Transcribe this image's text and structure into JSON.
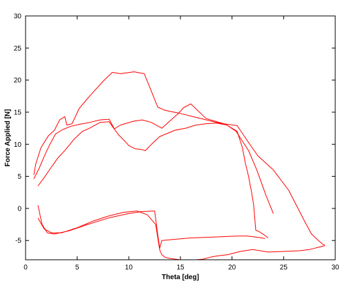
{
  "chart_data": {
    "type": "line",
    "title": "",
    "xlabel": "Theta [deg]",
    "ylabel": "Force Applied [N]",
    "xlim": [
      0,
      30
    ],
    "ylim": [
      -8,
      30
    ],
    "xticks": [
      0,
      5,
      10,
      15,
      20,
      25,
      30
    ],
    "yticks": [
      -5,
      0,
      5,
      10,
      15,
      20,
      25,
      30
    ],
    "grid": false,
    "legend": "none",
    "line_color": "#ff0000",
    "series": [
      {
        "x": [
          0.8,
          1.0,
          1.5,
          2.2,
          2.8,
          3.3,
          3.8,
          4.0,
          4.5,
          5.2,
          6.2,
          7.5,
          8.4,
          9.2,
          10.5,
          11.5,
          12.1,
          12.8,
          13.5,
          15.0,
          16.5,
          18.0,
          19.5,
          20.5,
          21.0,
          21.3,
          21.6,
          21.9,
          22.1,
          22.3,
          22.6,
          23.0,
          23.5
        ],
        "y": [
          5.2,
          7.0,
          9.5,
          11.3,
          12.2,
          13.8,
          14.3,
          13.0,
          13.2,
          15.6,
          17.5,
          19.8,
          21.2,
          21.0,
          21.3,
          21.0,
          18.6,
          15.8,
          15.3,
          14.8,
          14.2,
          13.6,
          13.0,
          12.0,
          9.5,
          7.0,
          5.0,
          2.5,
          0.5,
          -3.4,
          -3.6,
          -4.0,
          -4.6
        ]
      },
      {
        "x": [
          0.8,
          1.3,
          1.8,
          2.3,
          2.9,
          3.6,
          4.4,
          5.2,
          6.2,
          7.2,
          8.1,
          8.6,
          9.2,
          10.5,
          11.3,
          12.2,
          13.2,
          14.8,
          15.3,
          16.0,
          17.5,
          19.2,
          20.5,
          21.5,
          22.5,
          24.0,
          25.5,
          26.3,
          27.0,
          27.7,
          28.3,
          28.8,
          29.0
        ],
        "y": [
          4.6,
          6.2,
          8.1,
          9.8,
          11.6,
          12.3,
          12.8,
          13.1,
          13.4,
          13.8,
          13.9,
          12.4,
          13.0,
          13.6,
          13.8,
          13.4,
          12.5,
          14.8,
          15.7,
          16.3,
          14.0,
          13.2,
          12.9,
          10.5,
          8.2,
          6.0,
          2.8,
          0.3,
          -1.9,
          -4.0,
          -4.9,
          -5.6,
          -5.7
        ]
      },
      {
        "x": [
          1.2,
          1.8,
          2.4,
          3.1,
          3.9,
          4.7,
          5.5,
          6.2,
          7.2,
          8.1,
          8.4,
          9.0,
          9.6,
          10.0,
          10.6,
          11.2,
          11.6,
          12.2,
          13.0,
          14.5,
          15.5,
          16.5,
          17.5,
          18.5,
          19.5,
          20.4,
          21.0,
          21.6,
          22.4,
          23.3,
          24.0
        ],
        "y": [
          3.5,
          4.8,
          6.2,
          7.8,
          9.2,
          10.8,
          12.0,
          12.5,
          13.4,
          13.5,
          12.8,
          11.5,
          10.5,
          9.8,
          9.3,
          9.2,
          9.0,
          10.0,
          11.2,
          12.2,
          12.5,
          13.0,
          13.2,
          13.3,
          13.0,
          12.0,
          10.5,
          9.0,
          6.0,
          2.0,
          -0.8
        ]
      },
      {
        "x": [
          1.2,
          1.6,
          2.1,
          2.8,
          4.2,
          6.0,
          8.0,
          10.0,
          11.2,
          12.5,
          12.8,
          13.0,
          13.2,
          14.5,
          16.0,
          17.5,
          19.0,
          20.5,
          21.5,
          22.5,
          23.2
        ],
        "y": [
          0.5,
          -2.5,
          -3.8,
          -4.0,
          -3.5,
          -2.5,
          -1.5,
          -0.8,
          -0.5,
          -0.4,
          -4.0,
          -6.2,
          -5.0,
          -4.8,
          -4.6,
          -4.5,
          -4.4,
          -4.3,
          -4.3,
          -4.5,
          -4.7
        ]
      },
      {
        "x": [
          1.2,
          1.8,
          2.5,
          3.5,
          5.0,
          6.5,
          8.0,
          9.5,
          10.8,
          11.8,
          12.6,
          12.8,
          13.0,
          13.2,
          13.5,
          14.0,
          15.0,
          16.5,
          17.2,
          17.9,
          18.6,
          19.6,
          20.8,
          22.0,
          23.5,
          25.0,
          26.5,
          27.5,
          28.5,
          29.0
        ],
        "y": [
          -1.5,
          -3.2,
          -3.8,
          -3.8,
          -3.0,
          -2.0,
          -1.2,
          -0.6,
          -0.4,
          -1.0,
          -2.5,
          -4.5,
          -6.5,
          -7.2,
          -7.6,
          -7.8,
          -8.0,
          -8.0,
          -7.9,
          -7.6,
          -7.4,
          -7.2,
          -6.7,
          -6.4,
          -6.8,
          -6.7,
          -6.6,
          -6.4,
          -6.0,
          -5.8
        ]
      }
    ]
  }
}
